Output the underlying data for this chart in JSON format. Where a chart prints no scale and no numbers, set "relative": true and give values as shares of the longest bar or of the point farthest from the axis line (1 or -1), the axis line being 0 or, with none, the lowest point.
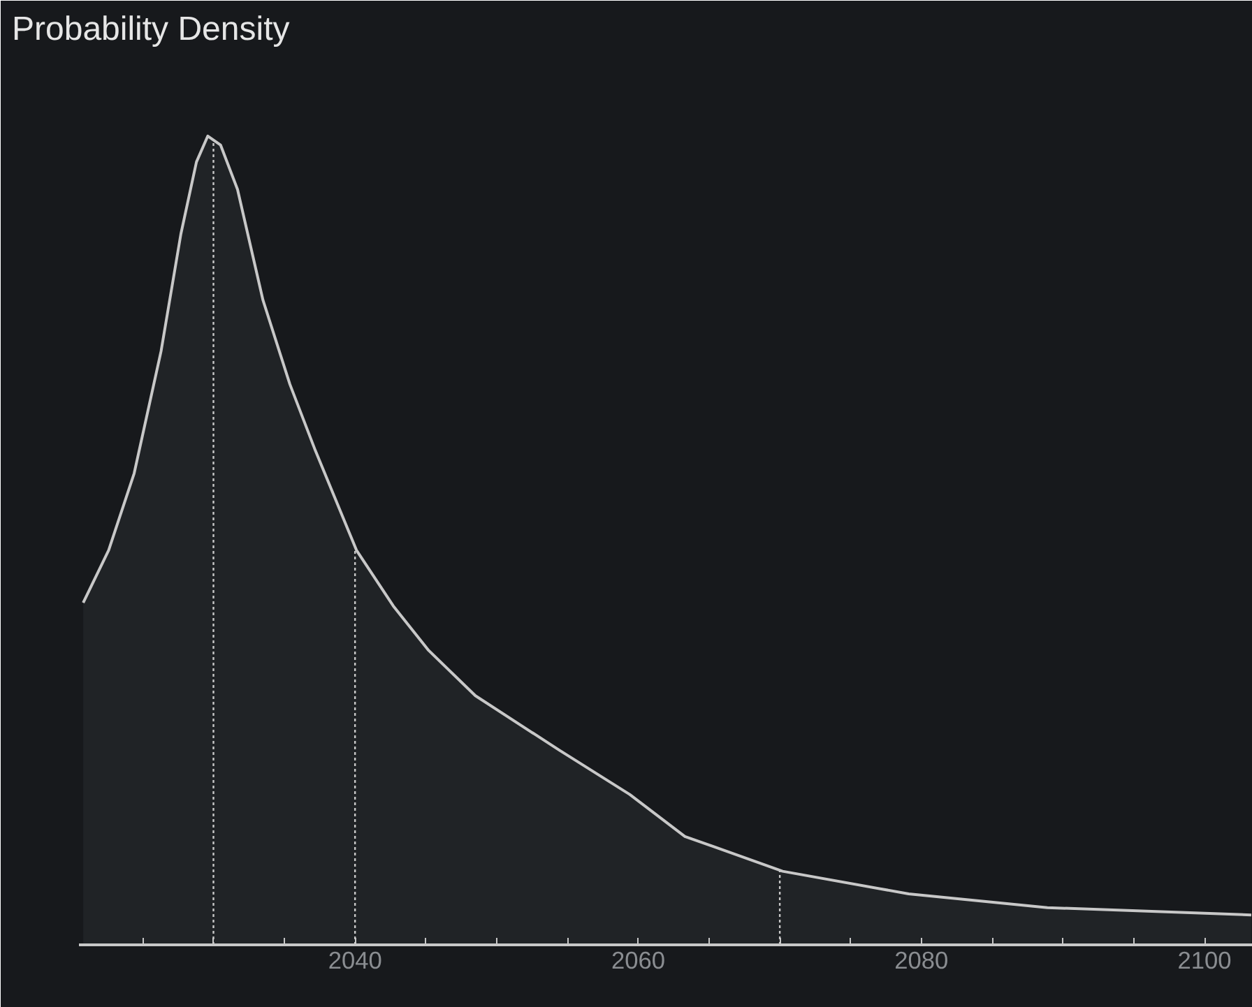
{
  "chart_data": {
    "type": "area",
    "title": "Probability Density",
    "relative": true,
    "color": "#c8c8c8",
    "x": [
      2020.8,
      2022.6,
      2024.4,
      2026.3,
      2027.7,
      2028.8,
      2029.6,
      2030.5,
      2031.7,
      2033.5,
      2035.4,
      2037.2,
      2040.1,
      2042.7,
      2045.2,
      2048.5,
      2054.4,
      2059.4,
      2063.3,
      2070.2,
      2079.1,
      2088.9,
      2103.3
    ],
    "values": [
      0.423,
      0.488,
      0.583,
      0.734,
      0.879,
      0.968,
      1.0,
      0.989,
      0.934,
      0.797,
      0.693,
      0.611,
      0.488,
      0.419,
      0.364,
      0.308,
      0.241,
      0.186,
      0.134,
      0.091,
      0.063,
      0.046,
      0.037
    ],
    "xlim": [
      2020.5,
      2103.4
    ],
    "xticks": [
      {
        "value": 2025,
        "label": null
      },
      {
        "value": 2030,
        "label": null
      },
      {
        "value": 2035,
        "label": null
      },
      2040,
      {
        "value": 2045,
        "label": null
      },
      {
        "value": 2050,
        "label": null
      },
      {
        "value": 2055,
        "label": null
      },
      2060,
      {
        "value": 2065,
        "label": null
      },
      {
        "value": 2070,
        "label": null
      },
      {
        "value": 2075,
        "label": null
      },
      2080,
      {
        "value": 2085,
        "label": null
      },
      {
        "value": 2090,
        "label": null
      },
      {
        "value": 2095,
        "label": null
      },
      2100
    ],
    "tick_labels": "x",
    "grid": false,
    "ref_lines": [
      {
        "axis": "x",
        "value": 2030,
        "color": "#c8c8c8",
        "line_style": "dotted"
      },
      {
        "axis": "x",
        "value": 2040,
        "color": "#c8c8c8",
        "line_style": "dotted"
      },
      {
        "axis": "x",
        "value": 2070,
        "color": "#c8c8c8",
        "line_style": "dotted"
      }
    ]
  }
}
